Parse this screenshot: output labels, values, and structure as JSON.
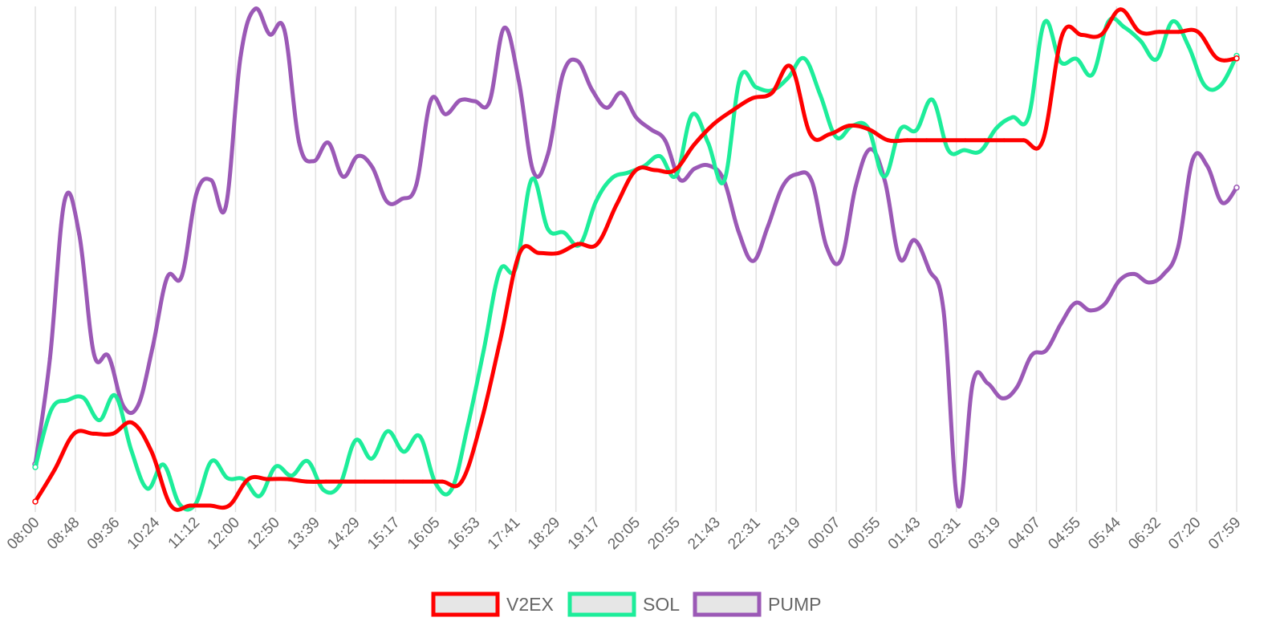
{
  "chart_data": {
    "type": "line",
    "title": "",
    "xlabel": "",
    "ylabel": "",
    "grid": {
      "vertical": true,
      "horizontal": false
    },
    "legend_position": "bottom-center",
    "x_tick_labels": [
      "08:00",
      "08:48",
      "09:36",
      "10:24",
      "11:12",
      "12:00",
      "12:50",
      "13:39",
      "14:29",
      "15:17",
      "16:05",
      "16:53",
      "17:41",
      "18:29",
      "19:17",
      "20:05",
      "20:55",
      "21:43",
      "22:31",
      "23:19",
      "00:07",
      "00:55",
      "01:43",
      "02:31",
      "03:19",
      "04:07",
      "04:55",
      "05:44",
      "06:32",
      "07:20",
      "07:59"
    ],
    "y_axis": {
      "labels_shown": false,
      "relative_scale": [
        0,
        100
      ]
    },
    "series": [
      {
        "name": "V2EX",
        "color": "#ff0000",
        "values": [
          0.8,
          7.2,
          14.4,
          14.4,
          14.4,
          16.6,
          10.8,
          0,
          0,
          0,
          0,
          5.3,
          5.3,
          5.3,
          4.8,
          4.8,
          4.8,
          4.8,
          4.8,
          4.8,
          4.8,
          4.8,
          4.8,
          16.6,
          33.2,
          50.6,
          50.6,
          50.6,
          52.4,
          52.4,
          60.3,
          67.2,
          67.2,
          67.2,
          72.3,
          76.4,
          79.2,
          81.6,
          82.6,
          87.9,
          74.4,
          74.4,
          76.1,
          75.4,
          73.2,
          73.2,
          73.2,
          73.2,
          73.2,
          73.2,
          73.2,
          73.2,
          73.2,
          94.3,
          94.3,
          94.3,
          99.4,
          94.9,
          94.9,
          94.9,
          94.9,
          89.6,
          89.6
        ]
      },
      {
        "name": "SOL",
        "color": "#1ded9a",
        "values": [
          7.7,
          19.2,
          21.1,
          21.6,
          17.1,
          22.0,
          11.0,
          3.4,
          8.2,
          0.3,
          0.3,
          8.9,
          5.5,
          5.3,
          1.9,
          7.8,
          6.0,
          8.9,
          3.1,
          4.1,
          13.1,
          9.4,
          14.9,
          10.8,
          13.9,
          4.4,
          3.3,
          16.0,
          31.2,
          47.1,
          47.6,
          65.4,
          55.4,
          54.7,
          52.3,
          60.9,
          65.6,
          66.7,
          68.0,
          70.0,
          66.1,
          78.3,
          72.7,
          65.0,
          85.7,
          83.8,
          83.2,
          85.7,
          89.6,
          82.3,
          73.8,
          76.1,
          75.6,
          65.9,
          75.4,
          75.2,
          81.3,
          71.2,
          71.2,
          71.0,
          75.6,
          77.8,
          77.8,
          96.8,
          88.9,
          89.5,
          86.4,
          97.0,
          95.8,
          93.1,
          89.4,
          97.0,
          92.0,
          84.2,
          84.2,
          90.1
        ]
      },
      {
        "name": "PUMP",
        "color": "#9b59b6",
        "values": [
          8.3,
          29.5,
          61.1,
          54.3,
          30.4,
          29.9,
          20.0,
          20.0,
          31.6,
          45.7,
          46.0,
          62.5,
          65.2,
          59.9,
          89.7,
          99.5,
          94.4,
          95.3,
          72.8,
          69.0,
          72.7,
          65.9,
          70.0,
          67.8,
          60.9,
          61.4,
          64.2,
          81.2,
          78.4,
          81.2,
          81.0,
          80.9,
          95.7,
          85.1,
          66.9,
          70.5,
          86.3,
          89.1,
          83.3,
          79.7,
          82.7,
          77.8,
          75.4,
          73.1,
          65.3,
          67.5,
          68.1,
          65.2,
          54.9,
          49.0,
          55.9,
          63.9,
          66.4,
          65.0,
          51.9,
          49.3,
          64.0,
          71.4,
          64.9,
          49.5,
          53.2,
          47.3,
          38.9,
          0,
          24.7,
          24.5,
          21.5,
          23.7,
          30.1,
          31.1,
          36.4,
          40.6,
          39.1,
          40.4,
          45.1,
          46.4,
          44.7,
          46.3,
          51.7,
          69.3,
          68.0,
          60.7,
          63.7
        ]
      }
    ]
  }
}
